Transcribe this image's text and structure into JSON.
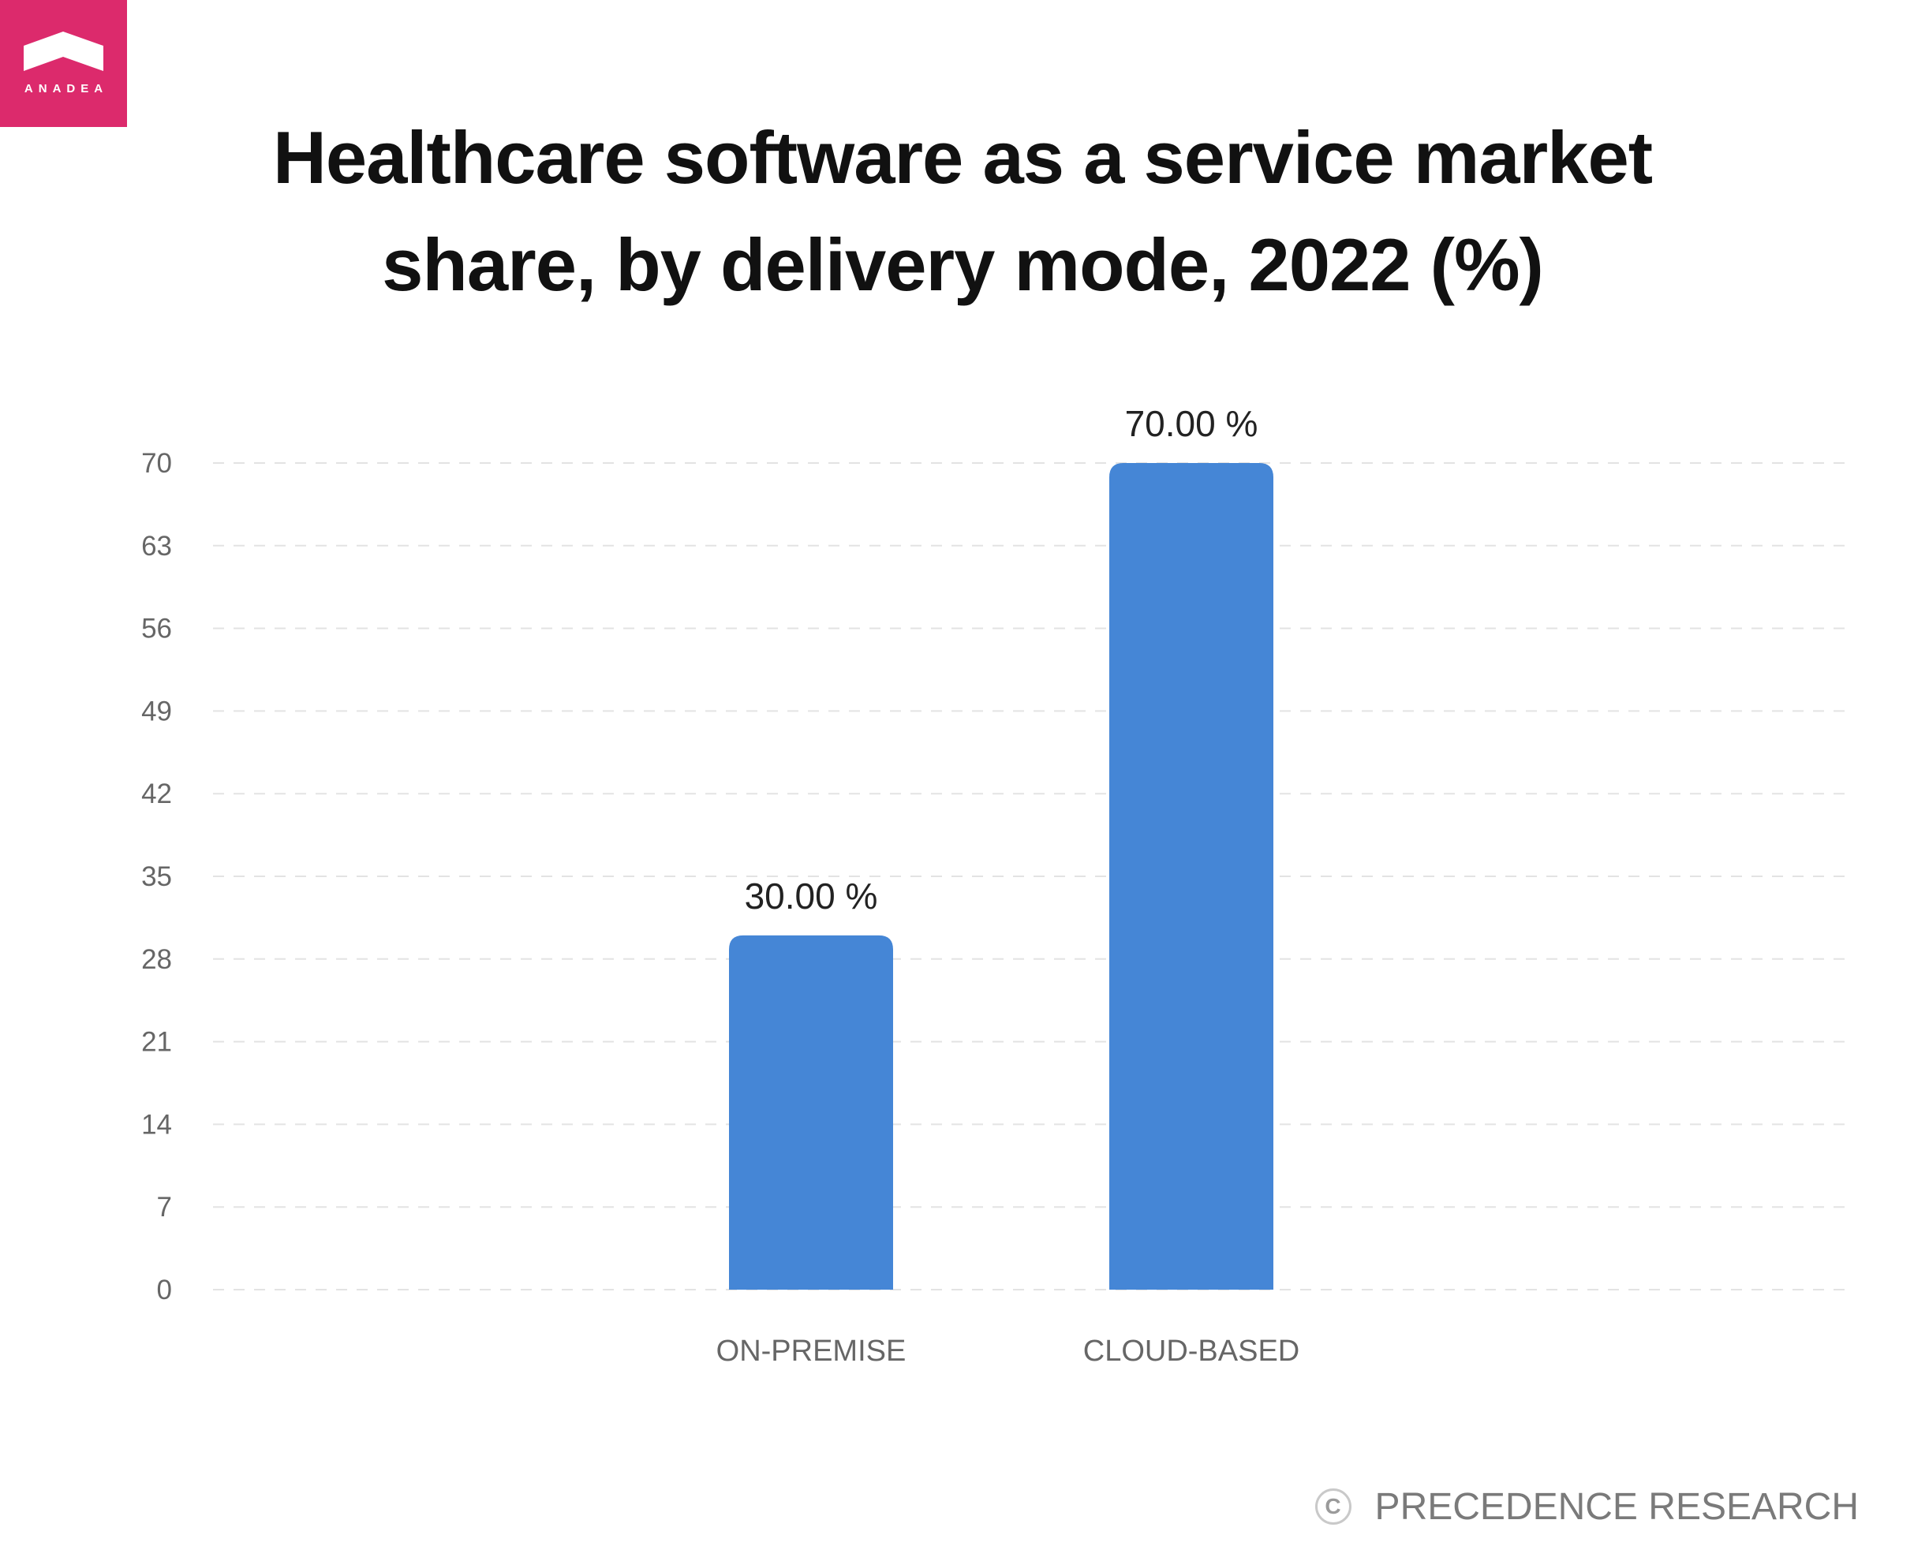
{
  "brand": {
    "name": "ANADEA",
    "color": "#dc2a6c",
    "icon": "house-roof-icon"
  },
  "source": {
    "text": "PRECEDENCE RESEARCH",
    "icon": "copyright-icon",
    "icon_glyph": "C"
  },
  "chart_data": {
    "type": "bar",
    "title": "Healthcare software as a service market share, by delivery mode, 2022 (%)",
    "categories": [
      "ON-PREMISE",
      "CLOUD-BASED"
    ],
    "values": [
      30,
      70
    ],
    "data_labels": [
      "30.00 %",
      "70.00 %"
    ],
    "bar_color": "#4586d6",
    "ylim": [
      0,
      70
    ],
    "yticks": [
      0,
      7,
      14,
      21,
      28,
      35,
      42,
      49,
      56,
      63,
      70
    ],
    "grid": true,
    "xlabel": "",
    "ylabel": ""
  }
}
